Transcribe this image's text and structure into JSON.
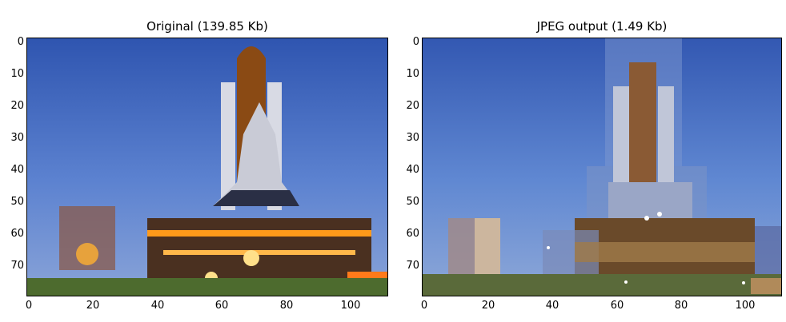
{
  "left": {
    "title": "Original (139.85 Kb)",
    "y_ticks": [
      "0",
      "10",
      "20",
      "30",
      "40",
      "50",
      "60",
      "70"
    ],
    "x_ticks": [
      "0",
      "20",
      "40",
      "60",
      "80",
      "100"
    ]
  },
  "right": {
    "title": "JPEG output (1.49 Kb)",
    "y_ticks": [
      "0",
      "10",
      "20",
      "30",
      "40",
      "50",
      "60",
      "70"
    ],
    "x_ticks": [
      "0",
      "20",
      "40",
      "60",
      "80",
      "100"
    ]
  },
  "colors": {
    "sky_top": "#2f55b0",
    "sky_bottom": "#6f93d8",
    "tank": "#8a4a14",
    "shuttle": "#c9cbd6",
    "platform": "#5a3a22",
    "fire": "#ff9a1a",
    "ground": "#4d6b2e"
  }
}
